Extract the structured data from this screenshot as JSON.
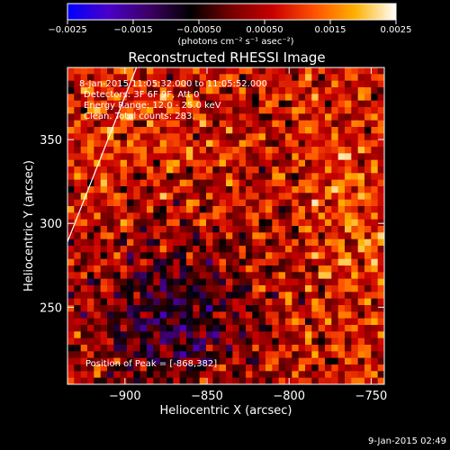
{
  "colorbar": {
    "ticks": [
      "−0.0025",
      "−0.0015",
      "−0.00050",
      "0.00050",
      "0.0015",
      "0.0025"
    ],
    "units": "(photons cm⁻² s⁻¹ asec⁻²)",
    "range": [
      -0.0025,
      0.0025
    ],
    "stops": [
      "#0000ff",
      "#4a00c8",
      "#3c0064",
      "#000000",
      "#780000",
      "#c80000",
      "#ff5000",
      "#ffb000",
      "#ffffff"
    ]
  },
  "chart_data": {
    "type": "heatmap",
    "title": "Reconstructed RHESSI Image",
    "xlabel": "Heliocentric X (arcsec)",
    "ylabel": "Heliocentric Y (arcsec)",
    "xlim": [
      -935,
      -742
    ],
    "ylim": [
      204,
      393
    ],
    "xticks": [
      -900,
      -850,
      -800,
      -750
    ],
    "yticks": [
      250,
      300,
      350
    ],
    "xtick_labels": [
      "−900",
      "−850",
      "−800",
      "−750"
    ],
    "ytick_labels": [
      "250",
      "300",
      "350"
    ],
    "grid": false,
    "limb_line": [
      [
        -935,
        289
      ],
      [
        -893,
        393
      ]
    ],
    "peak_position": [
      -868,
      382
    ],
    "annotations": [
      "8-Jan-2015 11:05:32.000 to 11:05:52.000",
      "Detectors: 3F 6F 9F, Att 0",
      "Energy Range: 12.0 - 25.0 keV",
      "Clean.   Total counts: 283.",
      "Position of Peak = [-868,382]"
    ],
    "grid_cols": 48,
    "grid_rows": 48
  },
  "footer": {
    "timestamp": "9-Jan-2015 02:49"
  }
}
